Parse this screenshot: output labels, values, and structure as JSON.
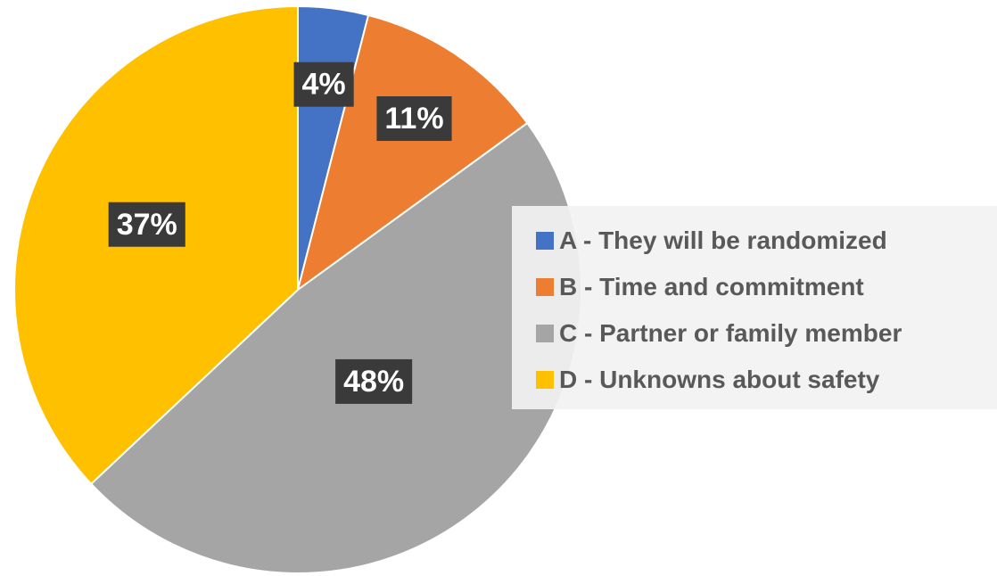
{
  "chart_data": {
    "type": "pie",
    "title": "",
    "categories": [
      "A  - They will be randomized",
      "B  -  Time and commitment",
      "C  - Partner or family member",
      "D  -  Unknowns about safety"
    ],
    "values": [
      4,
      11,
      48,
      37
    ],
    "value_labels": [
      "4%",
      "11%",
      "48%",
      "37%"
    ],
    "colors": [
      "#4472C4",
      "#ED7D31",
      "#A5A5A5",
      "#FFC000"
    ],
    "legend_placement": "right"
  }
}
